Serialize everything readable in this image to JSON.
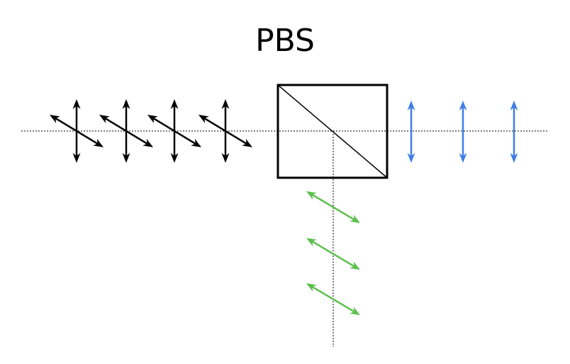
{
  "title": "PBS",
  "colors": {
    "input_beam": "#000000",
    "transmitted_beam": "#3d7ee6",
    "reflected_beam": "#5cbf4c",
    "beam_path": "#000000",
    "splitter": "#000000"
  },
  "input_beam": {
    "description_icons": [
      "double-arrow-vertical-icon",
      "double-arrow-diagonal-icon"
    ],
    "marker_count": 4
  },
  "transmitted_beam": {
    "description_icons": [
      "double-arrow-vertical-icon"
    ],
    "marker_count": 3
  },
  "reflected_beam": {
    "description_icons": [
      "double-arrow-diagonal-icon"
    ],
    "marker_count": 3
  }
}
